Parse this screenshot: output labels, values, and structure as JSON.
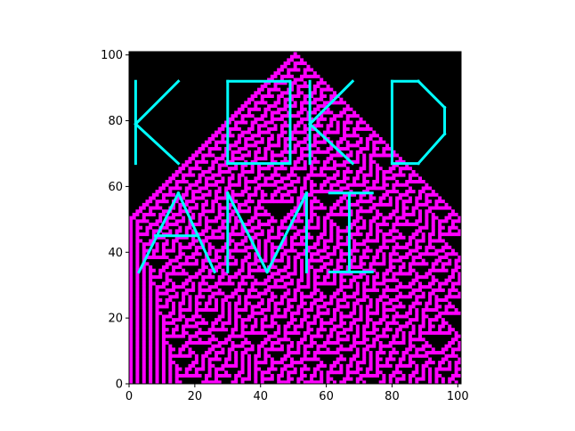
{
  "chart_data": {
    "type": "heatmap",
    "title": "",
    "xlabel": "",
    "ylabel": "",
    "xlim": [
      0,
      101
    ],
    "ylim": [
      0,
      101
    ],
    "grid": false,
    "x_ticks": [
      "0",
      "20",
      "40",
      "60",
      "80",
      "100"
    ],
    "y_ticks": [
      "0",
      "20",
      "40",
      "60",
      "80",
      "100"
    ],
    "x_tick_values": [
      0,
      20,
      40,
      60,
      80,
      100
    ],
    "y_tick_values": [
      0,
      20,
      40,
      60,
      80,
      100
    ],
    "colors": {
      "background_cell": "#000000",
      "active_cell": "#ff00ff",
      "overlay_line": "#00ffff"
    },
    "overlay_strokes": [
      [
        [
          2,
          92
        ],
        [
          2,
          67
        ]
      ],
      [
        [
          2,
          79
        ],
        [
          15,
          92
        ]
      ],
      [
        [
          2,
          79
        ],
        [
          15,
          67
        ]
      ],
      [
        [
          30,
          92
        ],
        [
          49,
          92
        ]
      ],
      [
        [
          30,
          92
        ],
        [
          30,
          67
        ]
      ],
      [
        [
          30,
          67
        ],
        [
          49,
          67
        ]
      ],
      [
        [
          49,
          92
        ],
        [
          49,
          67
        ]
      ],
      [
        [
          55,
          92
        ],
        [
          55,
          67
        ]
      ],
      [
        [
          55,
          79
        ],
        [
          68,
          92
        ]
      ],
      [
        [
          55,
          79
        ],
        [
          68,
          67
        ]
      ],
      [
        [
          80,
          92
        ],
        [
          88,
          92
        ]
      ],
      [
        [
          80,
          92
        ],
        [
          80,
          67
        ]
      ],
      [
        [
          80,
          67
        ],
        [
          88,
          67
        ]
      ],
      [
        [
          88,
          92
        ],
        [
          96,
          84
        ]
      ],
      [
        [
          96,
          84
        ],
        [
          96,
          76
        ]
      ],
      [
        [
          96,
          76
        ],
        [
          88,
          67
        ]
      ],
      [
        [
          3,
          34
        ],
        [
          15,
          58
        ]
      ],
      [
        [
          15,
          58
        ],
        [
          26,
          34
        ]
      ],
      [
        [
          8,
          45
        ],
        [
          21,
          45
        ]
      ],
      [
        [
          30,
          34
        ],
        [
          30,
          58
        ]
      ],
      [
        [
          30,
          58
        ],
        [
          42,
          34
        ]
      ],
      [
        [
          42,
          34
        ],
        [
          54,
          58
        ]
      ],
      [
        [
          54,
          58
        ],
        [
          54,
          34
        ]
      ],
      [
        [
          61,
          58
        ],
        [
          74,
          58
        ]
      ],
      [
        [
          67,
          58
        ],
        [
          67,
          34
        ]
      ],
      [
        [
          61,
          34
        ],
        [
          74,
          34
        ]
      ]
    ]
  }
}
